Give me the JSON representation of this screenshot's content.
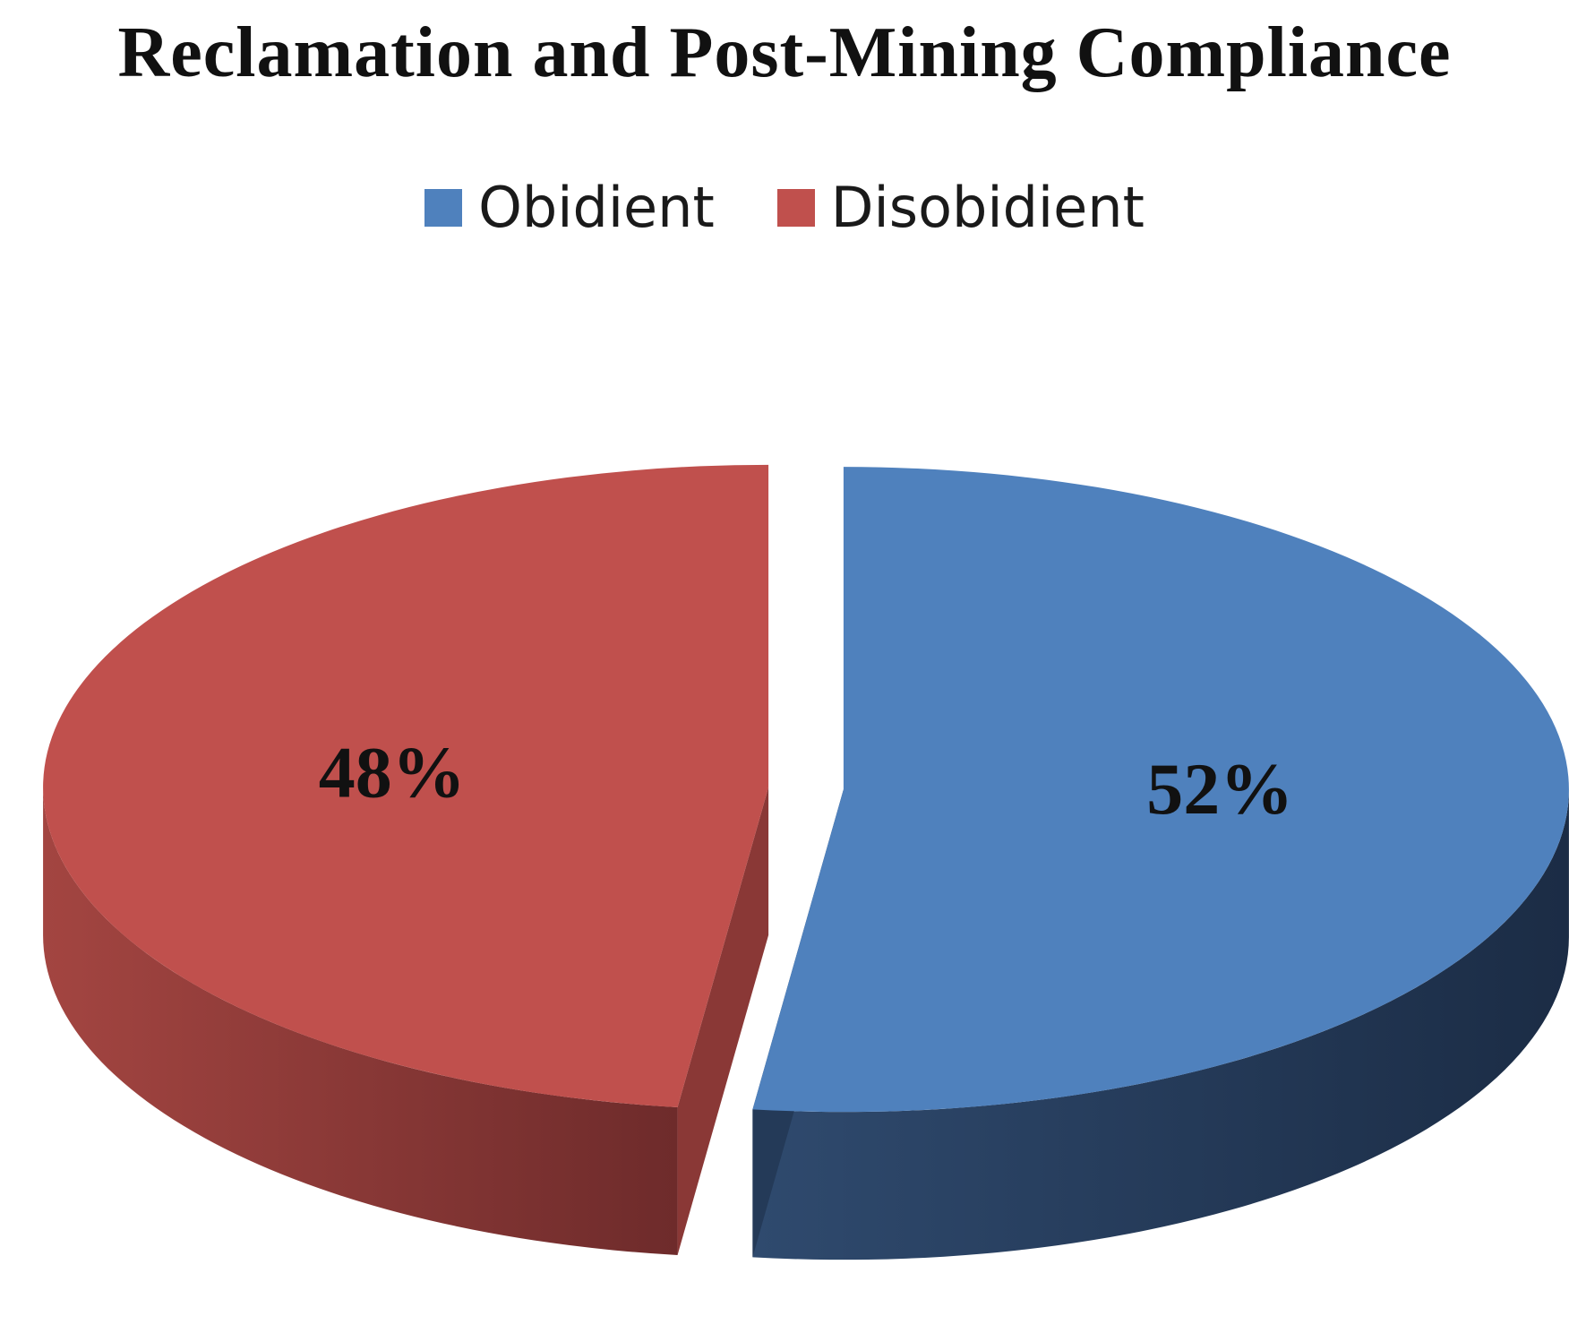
{
  "chart_data": {
    "type": "pie",
    "title": "Reclamation and Post-Mining Compliance",
    "legend_position": "top",
    "categories": [
      "Obidient",
      "Disobidient"
    ],
    "values": [
      52,
      48
    ],
    "labels": [
      "52%",
      "48%"
    ],
    "colors": {
      "Obidient": "#4F81BD",
      "Disobidient": "#C0504D"
    },
    "exploded": true,
    "three_d": true
  }
}
